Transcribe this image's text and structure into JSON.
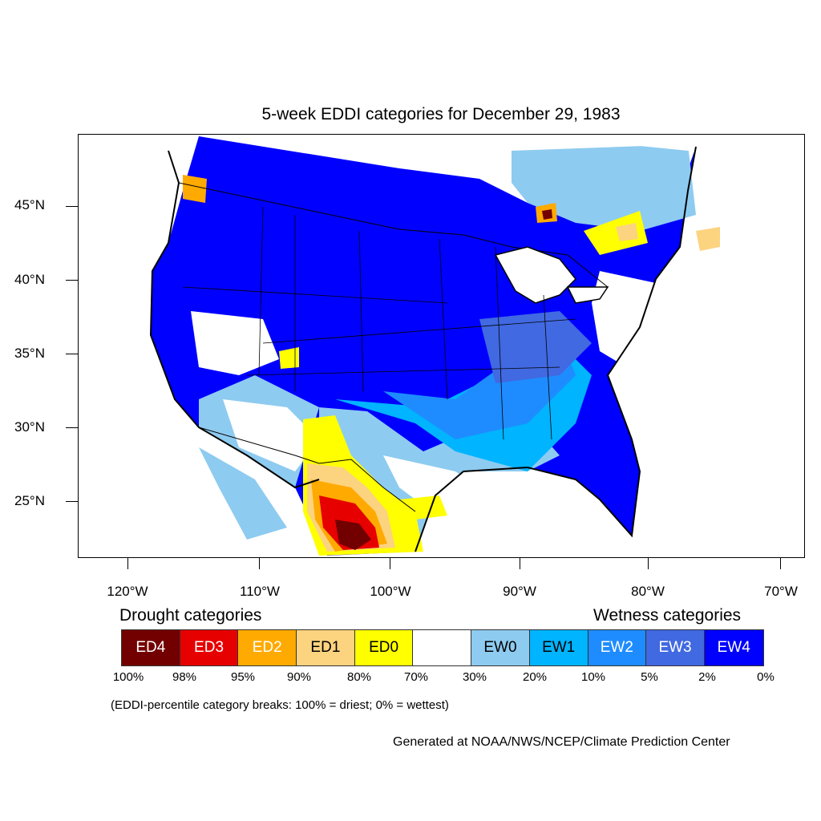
{
  "title": "5-week EDDI categories for December 29, 1983",
  "map": {
    "lat_labels": [
      "45°N",
      "40°N",
      "35°N",
      "30°N",
      "25°N"
    ],
    "lon_labels": [
      "120°W",
      "110°W",
      "100°W",
      "90°W",
      "80°W",
      "70°W"
    ],
    "base_color": "#0000ff"
  },
  "legend": {
    "drought_heading": "Drought categories",
    "wetness_heading": "Wetness categories",
    "categories": [
      {
        "label": "ED4",
        "color": "#730000",
        "text_color": "#ffffff"
      },
      {
        "label": "ED3",
        "color": "#e60000",
        "text_color": "#ffffff"
      },
      {
        "label": "ED2",
        "color": "#ffaa00",
        "text_color": "#ffffff"
      },
      {
        "label": "ED1",
        "color": "#fcd37f",
        "text_color": "#000000"
      },
      {
        "label": "ED0",
        "color": "#ffff00",
        "text_color": "#000000"
      },
      {
        "label": "",
        "color": "#ffffff",
        "text_color": "#000000"
      },
      {
        "label": "EW0",
        "color": "#8ecbf0",
        "text_color": "#000000"
      },
      {
        "label": "EW1",
        "color": "#00b4ff",
        "text_color": "#000000"
      },
      {
        "label": "EW2",
        "color": "#1e8cff",
        "text_color": "#ffffff"
      },
      {
        "label": "EW3",
        "color": "#4169e1",
        "text_color": "#ffffff"
      },
      {
        "label": "EW4",
        "color": "#0000ff",
        "text_color": "#ffffff"
      }
    ],
    "percent_breaks": [
      "100%",
      "98%",
      "95%",
      "90%",
      "80%",
      "70%",
      "30%",
      "20%",
      "10%",
      "5%",
      "2%",
      "0%"
    ]
  },
  "note": "(EDDI-percentile category breaks: 100% = driest; 0% = wettest)",
  "credit": "Generated at NOAA/NWS/NCEP/Climate Prediction Center"
}
